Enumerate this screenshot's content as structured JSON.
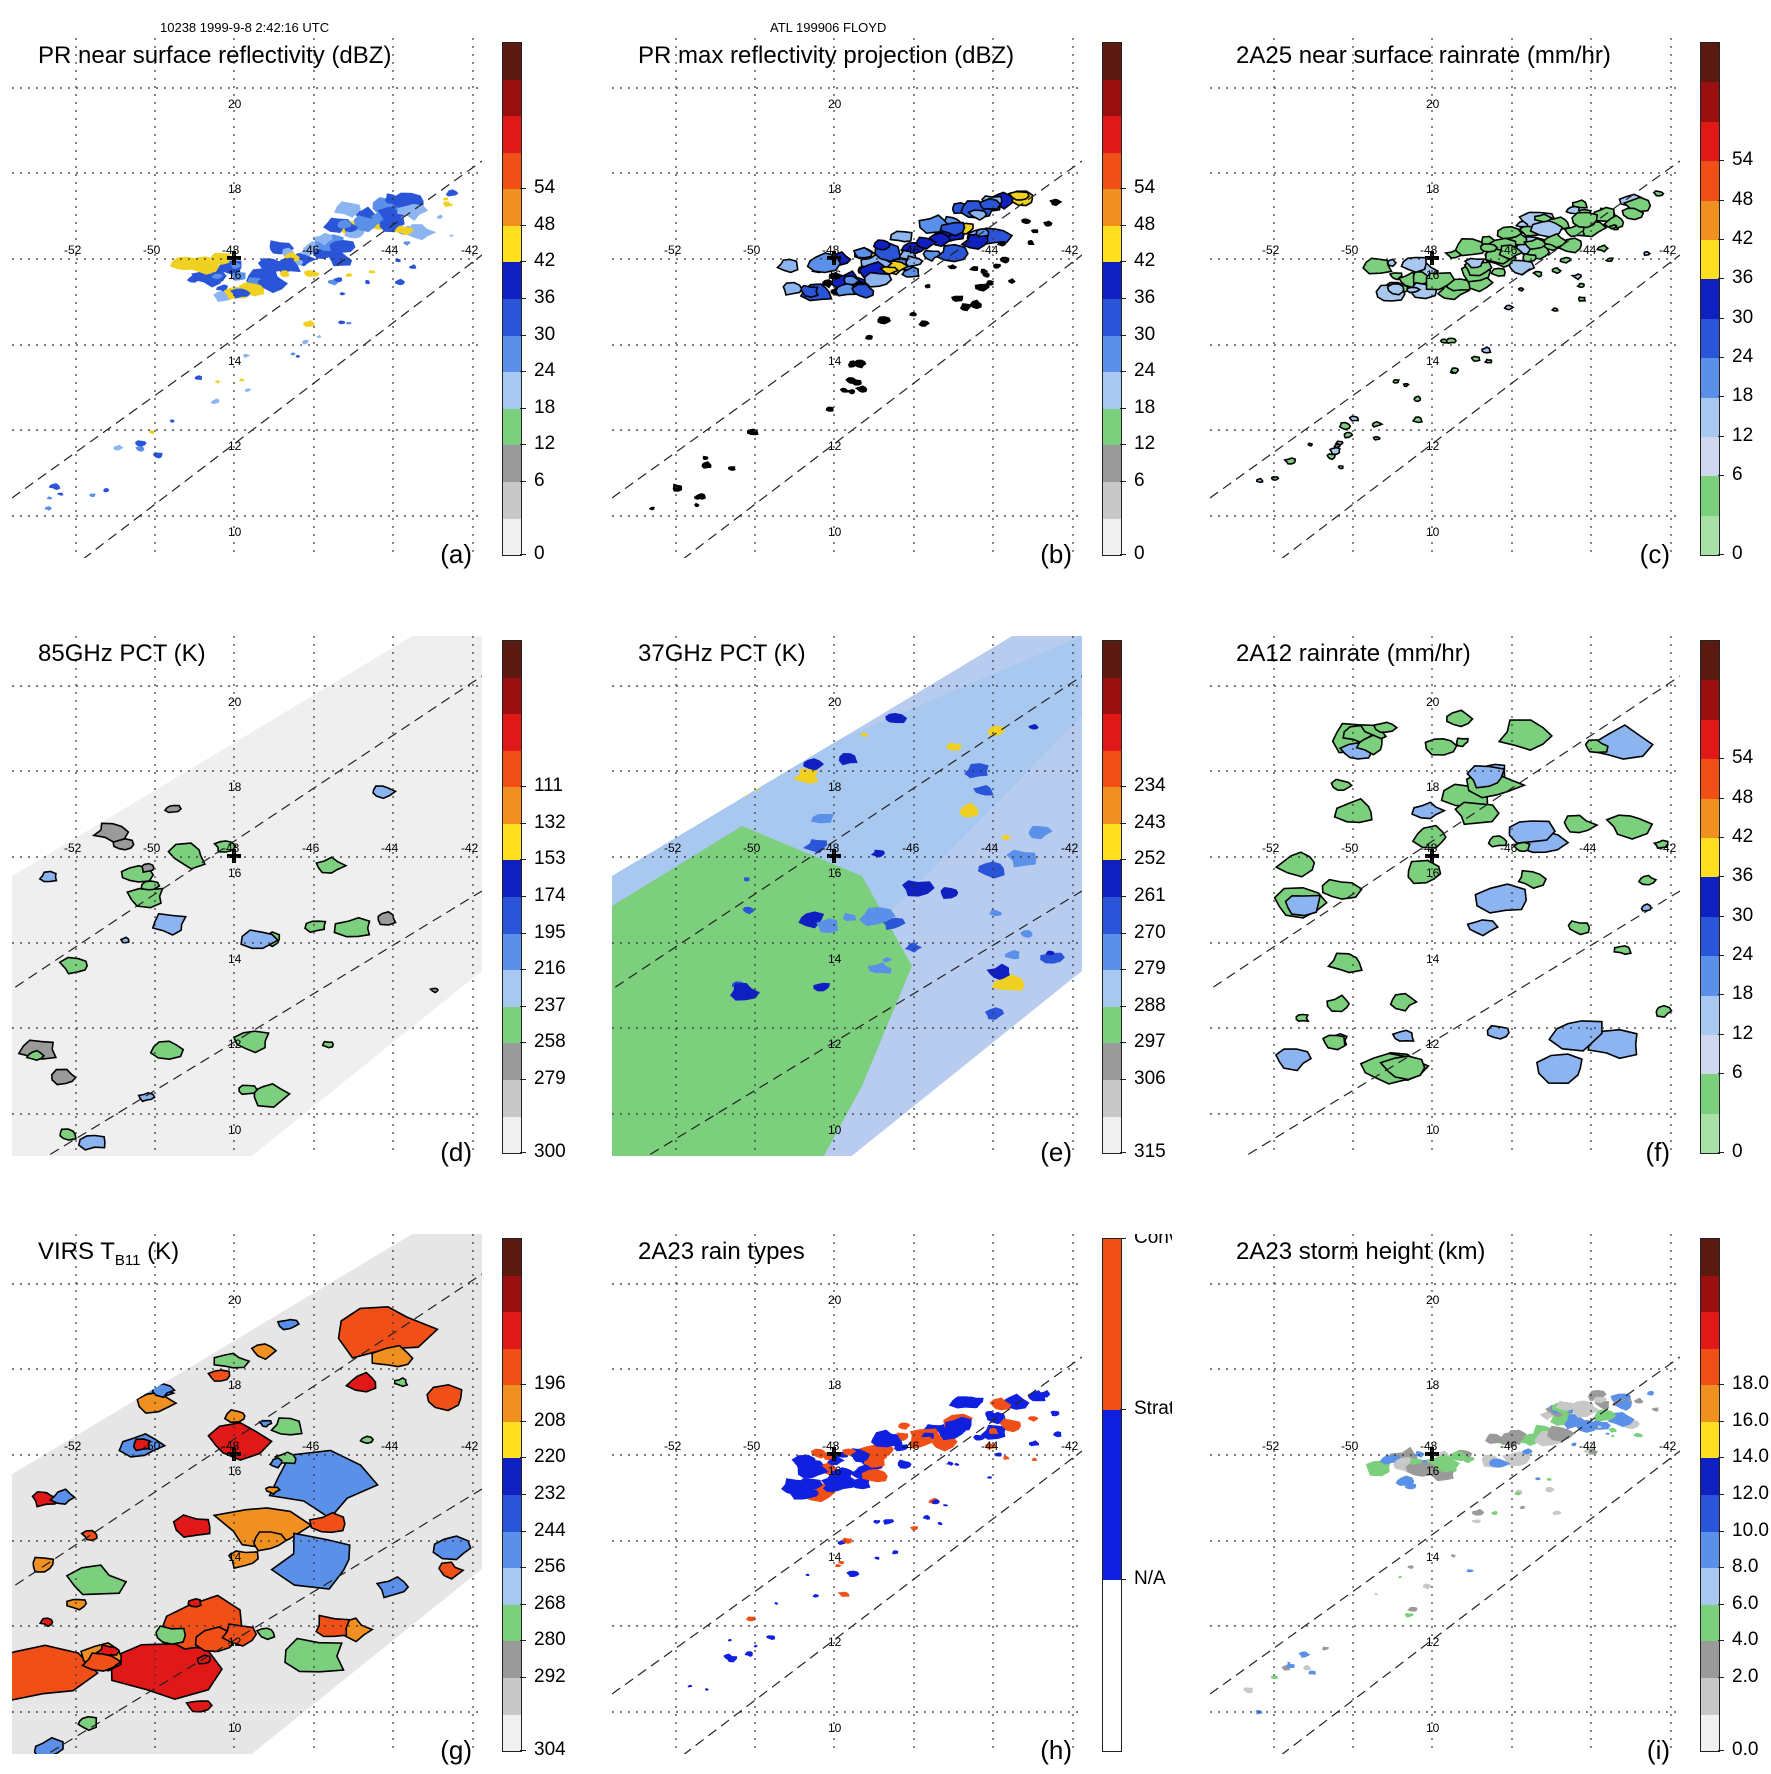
{
  "header": {
    "left": "10238 1999-9-8 2:42:16 UTC",
    "center": "ATL 199906 FLOYD"
  },
  "lon_labels": [
    "-52",
    "-50",
    "-48",
    "-46",
    "-44",
    "-42"
  ],
  "lat_labels": [
    "10",
    "12",
    "14",
    "16",
    "18",
    "20"
  ],
  "panels": [
    {
      "id": "a",
      "title": "PR near surface reflectivity (dBZ)",
      "label": "(a)",
      "swath": "narrow",
      "fill": "none",
      "storm": "echoes",
      "echo_colors": [
        "#2a55d8",
        "#5a90e8",
        "#8cb4f0",
        "#2a55d8",
        "#f0d020"
      ],
      "colorbar": {
        "colors": [
          "#5a1a10",
          "#9a1010",
          "#e01818",
          "#f05018",
          "#f09020",
          "#ffe020",
          "#1020c0",
          "#2a55d8",
          "#5a90e8",
          "#a8c8f0",
          "#7ccf7c",
          "#9a9a9a",
          "#c8c8c8",
          "#f0f0f0"
        ],
        "ticks": [
          "54",
          "48",
          "42",
          "36",
          "30",
          "24",
          "18",
          "12",
          "6",
          "0"
        ]
      }
    },
    {
      "id": "b",
      "title": "PR max reflectivity projection (dBZ)",
      "label": "(b)",
      "swath": "narrow",
      "fill": "none",
      "storm": "outlined",
      "echo_colors": [
        "#2a55d8",
        "#8cb4f0",
        "#1020c0",
        "#f0d020",
        "#5a90e8"
      ],
      "colorbar": {
        "colors": [
          "#5a1a10",
          "#9a1010",
          "#e01818",
          "#f05018",
          "#f09020",
          "#ffe020",
          "#1020c0",
          "#2a55d8",
          "#5a90e8",
          "#a8c8f0",
          "#7ccf7c",
          "#9a9a9a",
          "#c8c8c8",
          "#f0f0f0"
        ],
        "ticks": [
          "54",
          "48",
          "42",
          "36",
          "30",
          "24",
          "18",
          "12",
          "6",
          "0"
        ]
      }
    },
    {
      "id": "c",
      "title": "2A25 near surface rainrate (mm/hr)",
      "label": "(c)",
      "swath": "narrow",
      "fill": "none",
      "storm": "outlined",
      "echo_colors": [
        "#7ccf7c",
        "#7ccf7c",
        "#a8c8f0",
        "#7ccf7c"
      ],
      "colorbar": {
        "colors": [
          "#5a1a10",
          "#9a1010",
          "#e01818",
          "#f05018",
          "#f09020",
          "#ffe020",
          "#1020c0",
          "#2a55d8",
          "#5a90e8",
          "#a8c8f0",
          "#d0d8f0",
          "#7ccf7c",
          "#a8e0a8"
        ],
        "ticks": [
          "54",
          "48",
          "42",
          "36",
          "30",
          "24",
          "18",
          "12",
          "6",
          "0"
        ]
      }
    },
    {
      "id": "d",
      "title": "85GHz PCT (K)",
      "label": "(d)",
      "swath": "wide",
      "fill": "#efefef",
      "storm": "cells",
      "echo_colors": [
        "#7ccf7c",
        "#8cb4f0",
        "#7ccf7c",
        "#9a9a9a"
      ],
      "colorbar": {
        "colors": [
          "#5a1a10",
          "#9a1010",
          "#e01818",
          "#f05018",
          "#f09020",
          "#ffe020",
          "#1020c0",
          "#2a55d8",
          "#5a90e8",
          "#a8c8f0",
          "#7ccf7c",
          "#9a9a9a",
          "#c8c8c8",
          "#f0f0f0"
        ],
        "ticks": [
          "111",
          "132",
          "153",
          "174",
          "195",
          "216",
          "237",
          "258",
          "279",
          "300"
        ]
      }
    },
    {
      "id": "e",
      "title": "37GHz PCT (K)",
      "label": "(e)",
      "swath": "wide",
      "fill": "#b8ccf0",
      "storm": "pct37",
      "echo_colors": [
        "#1020c0",
        "#2a55d8",
        "#5a90e8",
        "#f0d020"
      ],
      "colorbar": {
        "colors": [
          "#5a1a10",
          "#9a1010",
          "#e01818",
          "#f05018",
          "#f09020",
          "#ffe020",
          "#1020c0",
          "#2a55d8",
          "#5a90e8",
          "#a8c8f0",
          "#7ccf7c",
          "#9a9a9a",
          "#c8c8c8",
          "#f0f0f0"
        ],
        "ticks": [
          "234",
          "243",
          "252",
          "261",
          "270",
          "279",
          "288",
          "297",
          "306",
          "315"
        ]
      }
    },
    {
      "id": "f",
      "title": "2A12 rainrate (mm/hr)",
      "label": "(f)",
      "swath": "wide",
      "fill": "none",
      "storm": "rain12",
      "echo_colors": [
        "#7ccf7c",
        "#8cb4f0",
        "#7ccf7c"
      ],
      "colorbar": {
        "colors": [
          "#5a1a10",
          "#9a1010",
          "#e01818",
          "#f05018",
          "#f09020",
          "#ffe020",
          "#1020c0",
          "#2a55d8",
          "#5a90e8",
          "#a8c8f0",
          "#d0d8f0",
          "#7ccf7c",
          "#a8e0a8"
        ],
        "ticks": [
          "54",
          "48",
          "42",
          "36",
          "30",
          "24",
          "18",
          "12",
          "6",
          "0"
        ]
      }
    },
    {
      "id": "g",
      "title": "VIRS T",
      "title_sub": "B11",
      "title_suffix": " (K)",
      "label": "(g)",
      "swath": "wide",
      "fill": "#e6e6e6",
      "storm": "virs",
      "echo_colors": [
        "#e01818",
        "#f05018",
        "#f09020",
        "#5a90e8",
        "#7ccf7c"
      ],
      "colorbar": {
        "colors": [
          "#5a1a10",
          "#9a1010",
          "#e01818",
          "#f05018",
          "#f09020",
          "#ffe020",
          "#1020c0",
          "#2a55d8",
          "#5a90e8",
          "#a8c8f0",
          "#7ccf7c",
          "#9a9a9a",
          "#c8c8c8",
          "#f0f0f0"
        ],
        "ticks": [
          "196",
          "208",
          "220",
          "232",
          "244",
          "256",
          "268",
          "280",
          "292",
          "304"
        ]
      }
    },
    {
      "id": "h",
      "title": "2A23 rain types",
      "label": "(h)",
      "swath": "narrow",
      "fill": "none",
      "storm": "raintype",
      "echo_colors": [
        "#1020e0",
        "#f05018"
      ],
      "colorbar": {
        "colors": [
          "#f05018",
          "#1020e0",
          "#ffffff"
        ],
        "ticks": [
          "Conv",
          "Strat",
          "N/A"
        ],
        "categorical": true
      }
    },
    {
      "id": "i",
      "title": "2A23 storm height (km)",
      "label": "(i)",
      "swath": "narrow",
      "fill": "none",
      "storm": "height",
      "echo_colors": [
        "#7ccf7c",
        "#9a9a9a",
        "#c8c8c8",
        "#5a90e8"
      ],
      "colorbar": {
        "colors": [
          "#5a1a10",
          "#9a1010",
          "#e01818",
          "#f05018",
          "#f09020",
          "#ffe020",
          "#1020c0",
          "#2a55d8",
          "#5a90e8",
          "#a8c8f0",
          "#7ccf7c",
          "#9a9a9a",
          "#c8c8c8",
          "#f0f0f0"
        ],
        "ticks": [
          "18.0",
          "16.0",
          "14.0",
          "12.0",
          "10.0",
          "8.0",
          "6.0",
          "4.0",
          "2.0",
          "0.0"
        ]
      }
    }
  ]
}
